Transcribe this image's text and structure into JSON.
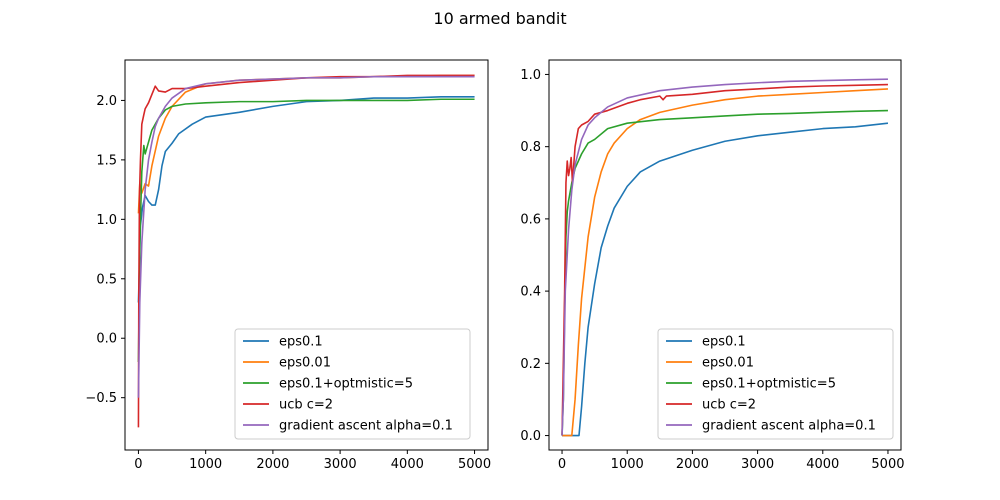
{
  "figure": {
    "title": "10 armed bandit"
  },
  "chart_data": [
    {
      "type": "line",
      "title": "",
      "xlabel": "",
      "ylabel": "",
      "xlim": [
        -200,
        5200
      ],
      "ylim": [
        -0.94,
        2.34
      ],
      "xticks": [
        0,
        1000,
        2000,
        3000,
        4000,
        5000
      ],
      "xtick_labels": [
        "0",
        "1000",
        "2000",
        "3000",
        "4000",
        "5000"
      ],
      "yticks": [
        -0.5,
        0.0,
        0.5,
        1.0,
        1.5,
        2.0
      ],
      "ytick_labels": [
        "−0.5",
        "0.0",
        "0.5",
        "1.0",
        "1.5",
        "2.0"
      ],
      "grid": false,
      "legend_position": "bottom-right",
      "series": [
        {
          "name": "eps0.1",
          "color": "#1f77b4",
          "x": [
            0,
            30,
            60,
            100,
            150,
            200,
            250,
            300,
            350,
            400,
            500,
            600,
            800,
            1000,
            1500,
            2000,
            2500,
            3000,
            3500,
            4000,
            4500,
            5000
          ],
          "y": [
            0.3,
            0.95,
            1.1,
            1.2,
            1.15,
            1.12,
            1.12,
            1.25,
            1.45,
            1.57,
            1.64,
            1.72,
            1.8,
            1.86,
            1.9,
            1.95,
            1.99,
            2.0,
            2.02,
            2.02,
            2.03,
            2.03
          ]
        },
        {
          "name": "eps0.01",
          "color": "#ff7f0e",
          "x": [
            0,
            20,
            50,
            100,
            150,
            200,
            300,
            400,
            500,
            700,
            1000,
            1500,
            2000,
            2500,
            3000,
            3500,
            4000,
            4500,
            5000
          ],
          "y": [
            1.05,
            1.3,
            1.22,
            1.3,
            1.28,
            1.45,
            1.7,
            1.85,
            1.95,
            2.07,
            2.14,
            2.17,
            2.18,
            2.19,
            2.19,
            2.2,
            2.2,
            2.21,
            2.21
          ]
        },
        {
          "name": "eps0.1+optmistic=5",
          "color": "#2ca02c",
          "x": [
            0,
            20,
            50,
            80,
            100,
            150,
            200,
            300,
            400,
            500,
            700,
            1000,
            1500,
            2000,
            2500,
            3000,
            3500,
            4000,
            4500,
            5000
          ],
          "y": [
            -0.2,
            0.8,
            1.4,
            1.62,
            1.55,
            1.65,
            1.75,
            1.85,
            1.92,
            1.95,
            1.97,
            1.98,
            1.99,
            1.99,
            2.0,
            2.0,
            2.0,
            2.0,
            2.01,
            2.01
          ]
        },
        {
          "name": "ucb c=2",
          "color": "#d62728",
          "x": [
            0,
            5,
            15,
            30,
            50,
            80,
            100,
            150,
            200,
            250,
            300,
            400,
            500,
            700,
            1000,
            1500,
            2000,
            2500,
            3000,
            3500,
            4000,
            4500,
            5000
          ],
          "y": [
            -0.75,
            0.3,
            1.2,
            1.5,
            1.8,
            1.88,
            1.93,
            1.98,
            2.05,
            2.12,
            2.08,
            2.07,
            2.1,
            2.1,
            2.12,
            2.15,
            2.17,
            2.19,
            2.2,
            2.2,
            2.21,
            2.21,
            2.21
          ]
        },
        {
          "name": "gradient ascent alpha=0.1",
          "color": "#9467bd",
          "x": [
            0,
            20,
            50,
            100,
            150,
            200,
            250,
            300,
            400,
            500,
            700,
            1000,
            1500,
            2000,
            2500,
            3000,
            3500,
            4000,
            4500,
            5000
          ],
          "y": [
            -0.5,
            0.3,
            0.8,
            1.25,
            1.5,
            1.65,
            1.78,
            1.85,
            1.95,
            2.02,
            2.1,
            2.14,
            2.17,
            2.18,
            2.19,
            2.19,
            2.2,
            2.2,
            2.2,
            2.2
          ]
        }
      ]
    },
    {
      "type": "line",
      "title": "",
      "xlabel": "",
      "ylabel": "",
      "xlim": [
        -200,
        5200
      ],
      "ylim": [
        -0.04,
        1.04
      ],
      "xticks": [
        0,
        1000,
        2000,
        3000,
        4000,
        5000
      ],
      "xtick_labels": [
        "0",
        "1000",
        "2000",
        "3000",
        "4000",
        "5000"
      ],
      "yticks": [
        0.0,
        0.2,
        0.4,
        0.6,
        0.8,
        1.0
      ],
      "ytick_labels": [
        "0.0",
        "0.2",
        "0.4",
        "0.6",
        "0.8",
        "1.0"
      ],
      "grid": false,
      "legend_position": "bottom-right",
      "series": [
        {
          "name": "eps0.1",
          "color": "#1f77b4",
          "x": [
            0,
            100,
            200,
            260,
            300,
            350,
            400,
            500,
            600,
            700,
            800,
            1000,
            1200,
            1500,
            2000,
            2500,
            3000,
            3500,
            4000,
            4500,
            5000
          ],
          "y": [
            0.0,
            0.0,
            0.0,
            0.0,
            0.08,
            0.2,
            0.3,
            0.42,
            0.52,
            0.58,
            0.63,
            0.69,
            0.73,
            0.76,
            0.79,
            0.815,
            0.83,
            0.84,
            0.85,
            0.855,
            0.865
          ]
        },
        {
          "name": "eps0.01",
          "color": "#ff7f0e",
          "x": [
            0,
            100,
            150,
            200,
            250,
            300,
            400,
            500,
            600,
            700,
            800,
            1000,
            1200,
            1500,
            2000,
            2500,
            3000,
            3500,
            4000,
            4500,
            5000
          ],
          "y": [
            0.0,
            0.0,
            0.0,
            0.1,
            0.25,
            0.38,
            0.55,
            0.66,
            0.73,
            0.78,
            0.81,
            0.85,
            0.875,
            0.895,
            0.915,
            0.93,
            0.94,
            0.945,
            0.95,
            0.955,
            0.96
          ]
        },
        {
          "name": "eps0.1+optmistic=5",
          "color": "#2ca02c",
          "x": [
            0,
            20,
            40,
            60,
            80,
            100,
            150,
            200,
            300,
            400,
            500,
            700,
            1000,
            1500,
            2000,
            2500,
            3000,
            3500,
            4000,
            4500,
            5000
          ],
          "y": [
            0.0,
            0.1,
            0.35,
            0.55,
            0.62,
            0.65,
            0.7,
            0.74,
            0.78,
            0.81,
            0.82,
            0.85,
            0.865,
            0.875,
            0.88,
            0.885,
            0.89,
            0.892,
            0.895,
            0.898,
            0.9
          ]
        },
        {
          "name": "ucb c=2",
          "color": "#d62728",
          "x": [
            0,
            20,
            40,
            60,
            80,
            100,
            120,
            140,
            160,
            200,
            250,
            300,
            400,
            500,
            700,
            1000,
            1200,
            1500,
            1550,
            1600,
            2000,
            2500,
            3000,
            3500,
            4000,
            4500,
            5000
          ],
          "y": [
            0.0,
            0.2,
            0.4,
            0.7,
            0.76,
            0.72,
            0.74,
            0.77,
            0.7,
            0.8,
            0.85,
            0.86,
            0.87,
            0.89,
            0.9,
            0.92,
            0.93,
            0.94,
            0.93,
            0.94,
            0.945,
            0.955,
            0.96,
            0.965,
            0.968,
            0.97,
            0.972
          ]
        },
        {
          "name": "gradient ascent alpha=0.1",
          "color": "#9467bd",
          "x": [
            0,
            20,
            50,
            100,
            150,
            200,
            300,
            400,
            500,
            700,
            1000,
            1500,
            2000,
            2500,
            3000,
            3500,
            4000,
            4500,
            5000
          ],
          "y": [
            0.0,
            0.1,
            0.4,
            0.57,
            0.68,
            0.75,
            0.82,
            0.86,
            0.88,
            0.91,
            0.935,
            0.955,
            0.965,
            0.972,
            0.977,
            0.981,
            0.983,
            0.985,
            0.987
          ]
        }
      ]
    }
  ]
}
